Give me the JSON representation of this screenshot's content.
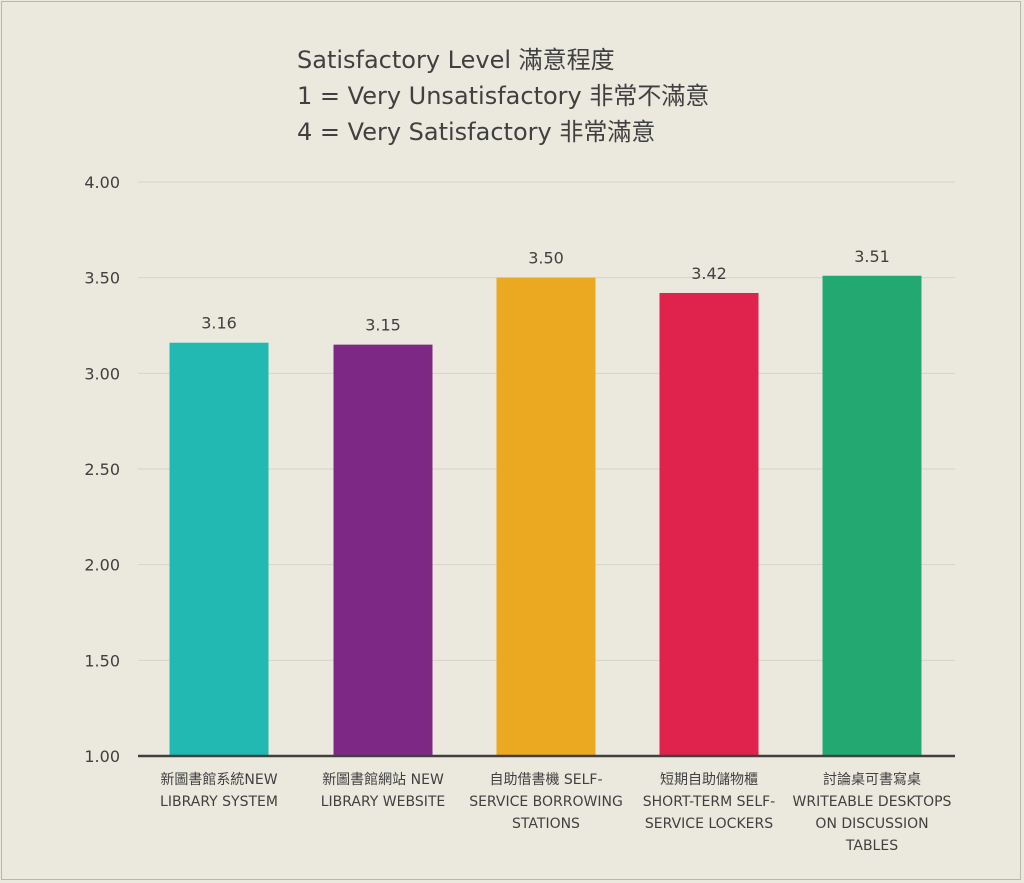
{
  "chart_data": {
    "type": "bar",
    "title_lines": [
      "Satisfactory Level 滿意程度",
      "1 = Very Unsatisfactory 非常不滿意",
      "4 = Very Satisfactory 非常滿意"
    ],
    "categories": [
      "新圖書館系統NEW LIBRARY SYSTEM",
      "新圖書館網站 NEW LIBRARY WEBSITE",
      "自助借書機 SELF-SERVICE BORROWING STATIONS",
      "短期自助儲物櫃 SHORT-TERM SELF-SERVICE LOCKERS",
      "討論桌可書寫桌 WRITEABLE DESKTOPS ON DISCUSSION TABLES"
    ],
    "category_label_lines": [
      [
        "新圖書館系統NEW",
        "LIBRARY SYSTEM"
      ],
      [
        "新圖書館網站 NEW",
        "LIBRARY WEBSITE"
      ],
      [
        "自助借書機 SELF-",
        "SERVICE BORROWING",
        "STATIONS"
      ],
      [
        "短期自助儲物櫃",
        "SHORT-TERM SELF-",
        "SERVICE LOCKERS"
      ],
      [
        "討論桌可書寫桌",
        "WRITEABLE DESKTOPS",
        "ON DISCUSSION",
        "TABLES"
      ]
    ],
    "values": [
      3.16,
      3.15,
      3.5,
      3.42,
      3.51
    ],
    "value_labels": [
      "3.16",
      "3.15",
      "3.50",
      "3.42",
      "3.51"
    ],
    "colors": [
      "#22b9b3",
      "#7e2885",
      "#eba821",
      "#e0234c",
      "#22a870"
    ],
    "ylim": [
      1.0,
      4.0
    ],
    "yticks": [
      1.0,
      1.5,
      2.0,
      2.5,
      3.0,
      3.5,
      4.0
    ],
    "ytick_labels": [
      "1.00",
      "1.50",
      "2.00",
      "2.50",
      "3.00",
      "3.50",
      "4.00"
    ],
    "grid": true,
    "xlabel": "",
    "ylabel": ""
  }
}
